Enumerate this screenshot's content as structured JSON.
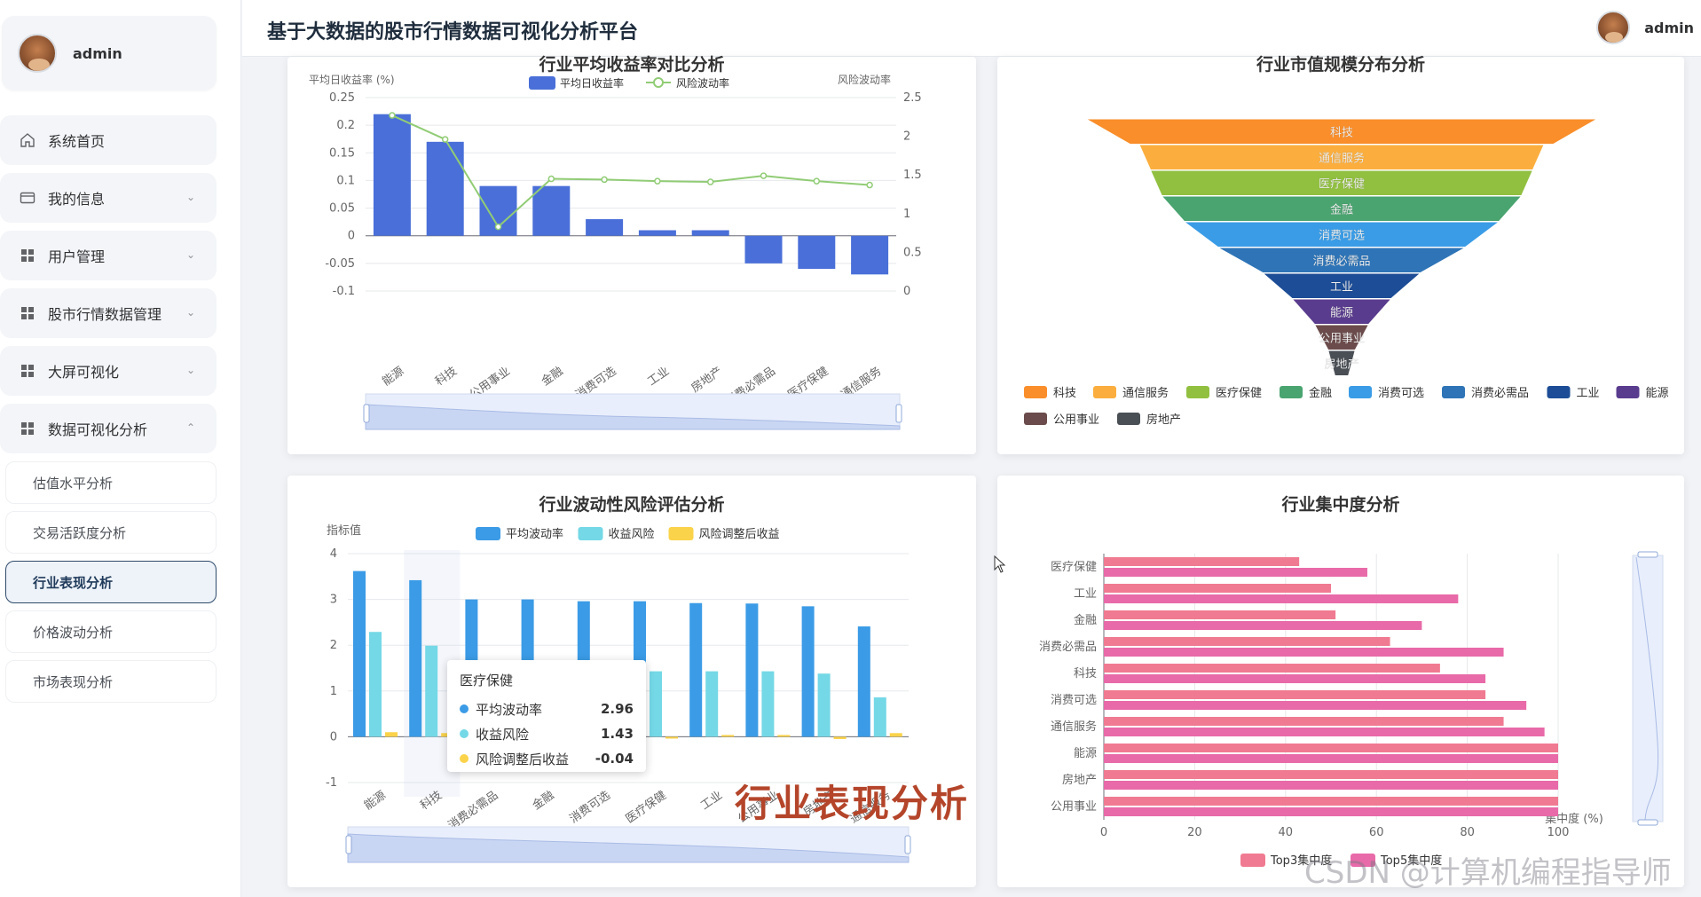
{
  "user": {
    "name": "admin"
  },
  "header": {
    "title": "基于大数据的股市行情数据可视化分析平台",
    "user_name": "admin"
  },
  "sidebar": {
    "items": [
      {
        "label": "系统首页",
        "icon": "home-icon"
      },
      {
        "label": "我的信息",
        "icon": "card-icon",
        "chevron": "down"
      },
      {
        "label": "用户管理",
        "icon": "grid-icon",
        "chevron": "down"
      },
      {
        "label": "股市行情数据管理",
        "icon": "grid-icon",
        "chevron": "down"
      },
      {
        "label": "大屏可视化",
        "icon": "grid-icon",
        "chevron": "down"
      },
      {
        "label": "数据可视化分析",
        "icon": "grid-icon",
        "chevron": "up"
      }
    ],
    "subitems": [
      {
        "label": "估值水平分析"
      },
      {
        "label": "交易活跃度分析"
      },
      {
        "label": "行业表现分析",
        "active": true
      },
      {
        "label": "价格波动分析"
      },
      {
        "label": "市场表现分析"
      }
    ]
  },
  "tooltip": {
    "title": "医疗保健",
    "rows": [
      {
        "name": "平均波动率",
        "value": "2.96",
        "color": "#3b9be6"
      },
      {
        "name": "收益风险",
        "value": "1.43",
        "color": "#74d8e6"
      },
      {
        "name": "风险调整后收益",
        "value": "-0.04",
        "color": "#fbd34a"
      }
    ]
  },
  "overlay_text": "行业表现分析",
  "watermark": "CSDN @计算机编程指导师",
  "chart_data": [
    {
      "type": "bar",
      "title": "行业平均收益率对比分析",
      "ylabel": "平均日收益率 (%)",
      "ylabel_right": "风险波动率",
      "categories": [
        "能源",
        "科技",
        "公用事业",
        "金融",
        "消费可选",
        "工业",
        "房地产",
        "消费必需品",
        "医疗保健",
        "通信服务"
      ],
      "ylim": [
        -0.1,
        0.25
      ],
      "yticks": [
        "0.25",
        "0.2",
        "0.15",
        "0.1",
        "0.05",
        "0",
        "-0.05",
        "-0.1"
      ],
      "ylim_right": [
        0,
        2.5
      ],
      "yticks_right": [
        "2.5",
        "2",
        "1.5",
        "1",
        "0.5",
        "0"
      ],
      "series": [
        {
          "name": "平均日收益率",
          "type": "bar",
          "color": "#4a6fd8",
          "values": [
            0.22,
            0.17,
            0.09,
            0.09,
            0.03,
            0.01,
            0.01,
            -0.05,
            -0.06,
            -0.07
          ]
        },
        {
          "name": "风险波动率",
          "type": "line",
          "color": "#91cc75",
          "values": [
            2.27,
            1.96,
            0.83,
            1.45,
            1.44,
            1.42,
            1.41,
            1.49,
            1.42,
            1.37
          ]
        }
      ],
      "legend": "top-center",
      "datazoom": true
    },
    {
      "type": "funnel",
      "title": "行业市值规模分布分析",
      "categories": [
        "科技",
        "通信服务",
        "医疗保健",
        "金融",
        "消费可选",
        "消费必需品",
        "工业",
        "能源",
        "公用事业",
        "房地产"
      ],
      "colors": [
        "#f98e2a",
        "#fbae3d",
        "#91c040",
        "#4aa470",
        "#3a9ce6",
        "#2e74b7",
        "#1d4d96",
        "#5a3c8e",
        "#6b4b4b",
        "#4a4f55"
      ],
      "values": [
        100,
        90,
        85,
        80,
        70,
        55,
        35,
        22,
        12,
        6
      ],
      "legend": "bottom"
    },
    {
      "type": "bar",
      "title": "行业波动性风险评估分析",
      "ylabel": "指标值",
      "categories": [
        "能源",
        "科技",
        "消费必需品",
        "金融",
        "消费可选",
        "医疗保健",
        "工业",
        "公用事业",
        "房地产",
        "通信服务"
      ],
      "ylim": [
        -1,
        4
      ],
      "yticks": [
        "4",
        "3",
        "2",
        "1",
        "0",
        "-1"
      ],
      "series": [
        {
          "name": "平均波动率",
          "color": "#3b9be6",
          "values": [
            3.62,
            3.42,
            3.0,
            3.0,
            2.96,
            2.96,
            2.92,
            2.91,
            2.85,
            2.41
          ]
        },
        {
          "name": "收益风险",
          "color": "#74d8e6",
          "values": [
            2.29,
            1.99,
            1.43,
            1.43,
            1.43,
            1.43,
            1.43,
            1.43,
            1.38,
            0.86
          ]
        },
        {
          "name": "风险调整后收益",
          "color": "#fbd34a",
          "values": [
            0.1,
            0.08,
            0.0,
            0.0,
            0.0,
            -0.04,
            0.0,
            0.0,
            -0.05,
            0.08
          ]
        }
      ],
      "legend": "top-center",
      "datazoom": true
    },
    {
      "type": "bar",
      "orientation": "horizontal",
      "title": "行业集中度分析",
      "xlabel": "集中度 (%)",
      "categories": [
        "医疗保健",
        "工业",
        "金融",
        "消费必需品",
        "科技",
        "消费可选",
        "通信服务",
        "能源",
        "房地产",
        "公用事业"
      ],
      "xlim": [
        0,
        100
      ],
      "xticks": [
        "0",
        "20",
        "40",
        "60",
        "80",
        "100"
      ],
      "series": [
        {
          "name": "Top3集中度",
          "color": "#f07a91",
          "values": [
            43,
            50,
            51,
            63,
            74,
            84,
            88,
            100,
            100,
            100
          ]
        },
        {
          "name": "Top5集中度",
          "color": "#e86aa8",
          "values": [
            58,
            78,
            70,
            88,
            84,
            93,
            97,
            100,
            100,
            100
          ]
        }
      ],
      "legend": "bottom",
      "datazoom": true
    }
  ]
}
